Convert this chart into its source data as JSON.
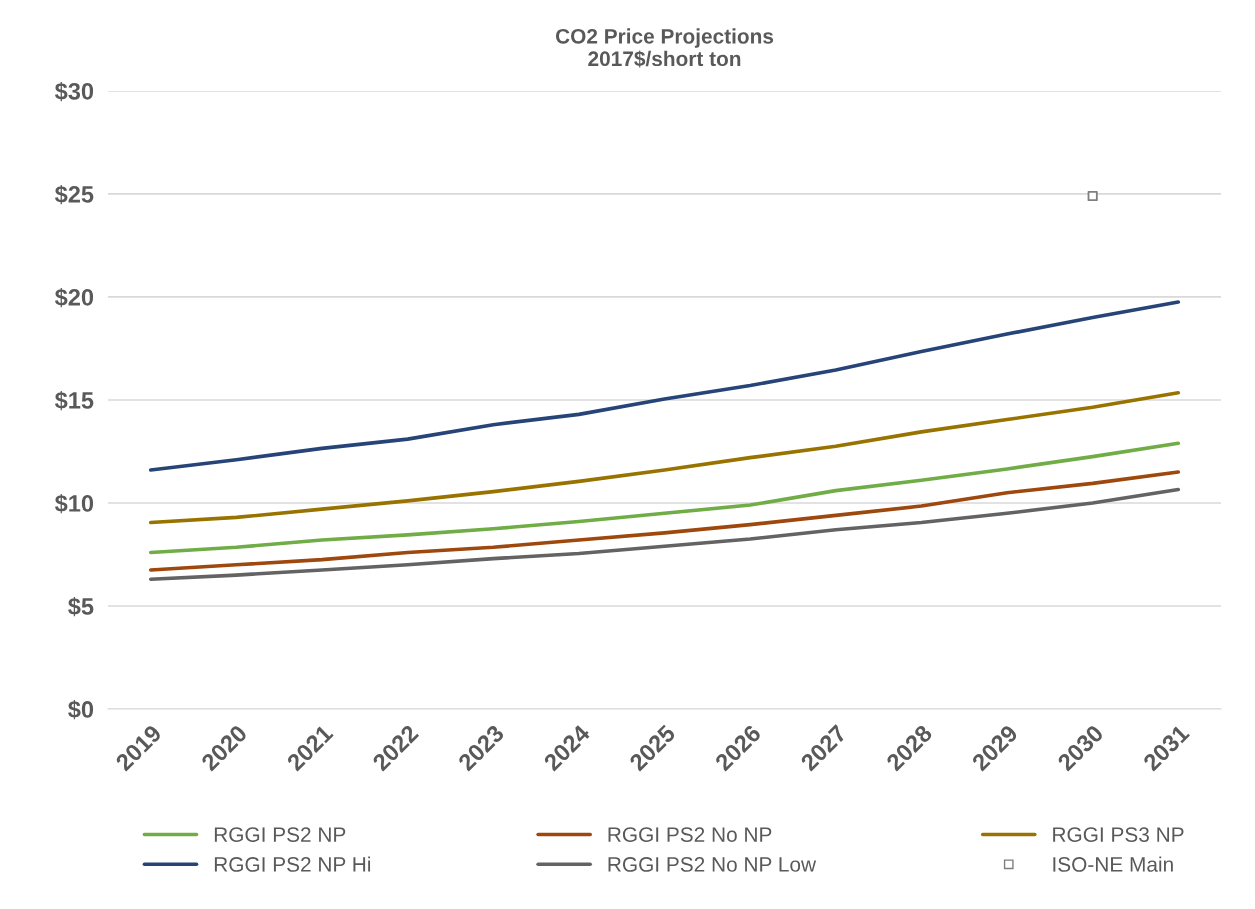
{
  "chart_data": {
    "type": "line",
    "title": "CO2 Price Projections\n2017$/short ton",
    "categories": [
      "2019",
      "2020",
      "2021",
      "2022",
      "2023",
      "2024",
      "2025",
      "2026",
      "2027",
      "2028",
      "2029",
      "2030",
      "2031"
    ],
    "series": [
      {
        "name": "RGGI PS2 NP",
        "color": "#70ad47",
        "values": [
          7.6,
          7.85,
          8.2,
          8.45,
          8.75,
          9.1,
          9.5,
          9.9,
          10.6,
          11.1,
          11.65,
          12.25,
          12.9
        ]
      },
      {
        "name": "RGGI PS2 NP Hi",
        "color": "#264478",
        "values": [
          11.6,
          12.1,
          12.65,
          13.1,
          13.8,
          14.3,
          15.05,
          15.7,
          16.45,
          17.35,
          18.2,
          19.0,
          19.75
        ]
      },
      {
        "name": "RGGI PS2 No NP",
        "color": "#9e480e",
        "values": [
          6.75,
          7.0,
          7.25,
          7.6,
          7.85,
          8.2,
          8.55,
          8.95,
          9.4,
          9.85,
          10.5,
          10.95,
          11.5
        ]
      },
      {
        "name": "RGGI PS2 No NP Low",
        "color": "#636363",
        "values": [
          6.3,
          6.5,
          6.75,
          7.0,
          7.3,
          7.55,
          7.9,
          8.25,
          8.7,
          9.05,
          9.5,
          10.0,
          10.65
        ]
      },
      {
        "name": "RGGI PS3 NP",
        "color": "#997300",
        "values": [
          9.05,
          9.3,
          9.7,
          10.1,
          10.55,
          11.05,
          11.6,
          12.2,
          12.75,
          13.45,
          14.05,
          14.65,
          15.35
        ]
      },
      {
        "name": "ISO-NE Main",
        "color": "#7f7f7f",
        "type": "scatter",
        "marker": "square",
        "values": [
          null,
          null,
          null,
          null,
          null,
          null,
          null,
          null,
          null,
          null,
          null,
          24.9,
          null
        ]
      }
    ],
    "ylim": [
      0,
      30
    ],
    "yticks": [
      {
        "value": 0,
        "label": "$0"
      },
      {
        "value": 5,
        "label": "$5"
      },
      {
        "value": 10,
        "label": "$10"
      },
      {
        "value": 15,
        "label": "$15"
      },
      {
        "value": 20,
        "label": "$20"
      },
      {
        "value": 25,
        "label": "$25"
      },
      {
        "value": 30,
        "label": "$30"
      }
    ],
    "grid": "y",
    "legend": "bottom",
    "marker": "none",
    "line_style": "solid"
  }
}
